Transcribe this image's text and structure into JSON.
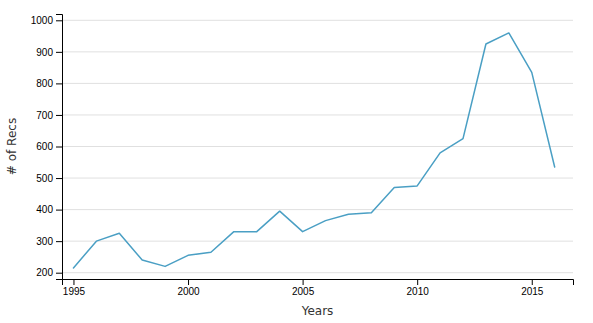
{
  "chart_data": {
    "type": "line",
    "x": [
      1995,
      1996,
      1997,
      1998,
      1999,
      2000,
      2001,
      2002,
      2003,
      2004,
      2005,
      2006,
      2007,
      2008,
      2009,
      2010,
      2011,
      2012,
      2013,
      2014,
      2015,
      2016
    ],
    "values": [
      215,
      300,
      325,
      240,
      220,
      255,
      265,
      330,
      330,
      395,
      330,
      365,
      385,
      390,
      470,
      475,
      580,
      625,
      925,
      960,
      835,
      535
    ],
    "color": "#4a9fc4",
    "xlabel": "Years",
    "ylabel": "# of Recs",
    "xlim": [
      1994.5,
      2016.8
    ],
    "ylim": [
      180,
      1020
    ],
    "xticks": [
      1995,
      2000,
      2005,
      2010,
      2015
    ],
    "yticks": [
      200,
      300,
      400,
      500,
      600,
      700,
      800,
      900,
      1000
    ],
    "grid": true
  }
}
